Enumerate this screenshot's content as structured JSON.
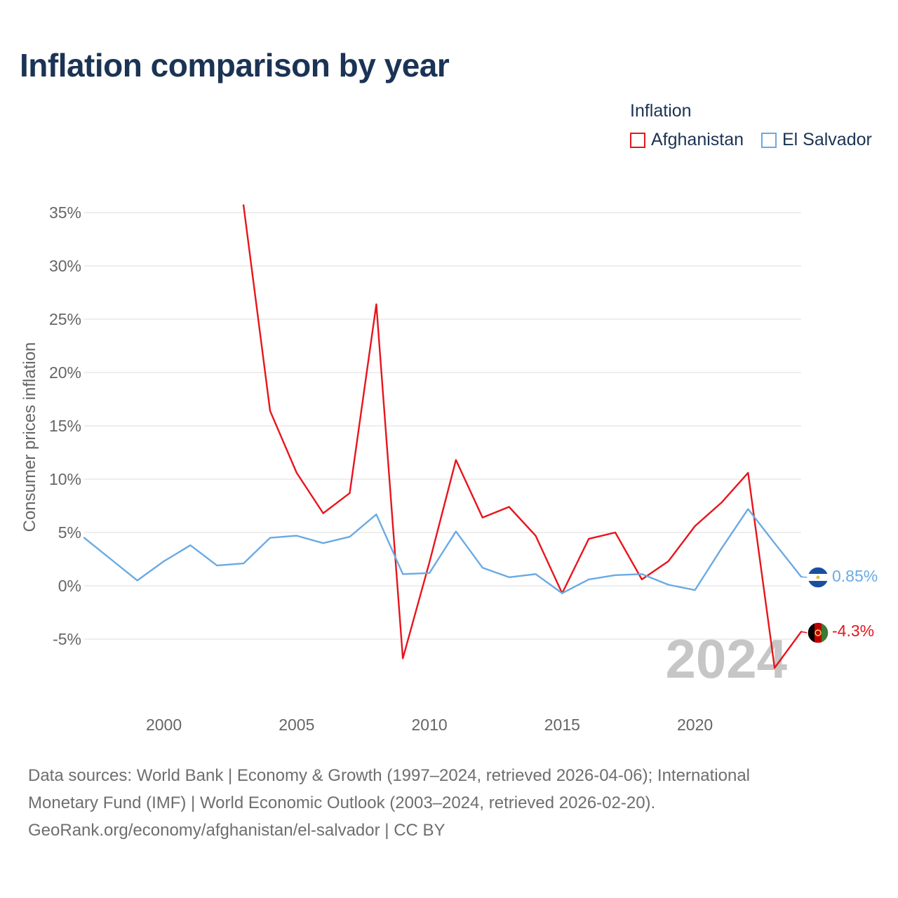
{
  "title": "Inflation comparison by year",
  "legend": {
    "title": "Inflation",
    "items": [
      {
        "label": "Afghanistan",
        "color": "#e8141c"
      },
      {
        "label": "El Salvador",
        "color": "#6aaae4"
      }
    ]
  },
  "year_watermark": "2024",
  "sources": {
    "line1": "Data sources: World Bank | Economy & Growth (1997–2024, retrieved 2026-04-06); International",
    "line2": "Monetary Fund (IMF) | World Economic Outlook (2003–2024, retrieved 2026-02-20).",
    "line3": "GeoRank.org/economy/afghanistan/el-salvador | CC BY"
  },
  "chart_data": {
    "type": "line",
    "title": "Inflation comparison by year",
    "xlabel": "",
    "ylabel": "Consumer prices inflation",
    "xlim": [
      1997,
      2024
    ],
    "ylim": [
      -10,
      35
    ],
    "grid": true,
    "legend_position": "top-right",
    "x_ticks": [
      2000,
      2005,
      2010,
      2015,
      2020
    ],
    "y_ticks": [
      35,
      30,
      25,
      20,
      15,
      10,
      5,
      0,
      -5
    ],
    "y_tick_labels": [
      "35%",
      "30%",
      "25%",
      "20%",
      "15%",
      "10%",
      "5%",
      "0%",
      "-5%"
    ],
    "series": [
      {
        "name": "Afghanistan",
        "color": "#e8141c",
        "x": [
          2003,
          2004,
          2005,
          2006,
          2007,
          2008,
          2009,
          2010,
          2011,
          2012,
          2013,
          2014,
          2015,
          2016,
          2017,
          2018,
          2019,
          2020,
          2021,
          2022,
          2023,
          2024
        ],
        "values": [
          35.7,
          16.4,
          10.6,
          6.8,
          8.7,
          26.4,
          -6.8,
          2.2,
          11.8,
          6.4,
          7.4,
          4.7,
          -0.7,
          4.4,
          5.0,
          0.6,
          2.3,
          5.6,
          7.8,
          10.6,
          -7.7,
          -4.3
        ],
        "end_label": "-4.3%"
      },
      {
        "name": "El Salvador",
        "color": "#6aaae4",
        "x": [
          1997,
          1998,
          1999,
          2000,
          2001,
          2002,
          2003,
          2004,
          2005,
          2006,
          2007,
          2008,
          2009,
          2010,
          2011,
          2012,
          2013,
          2014,
          2015,
          2016,
          2017,
          2018,
          2019,
          2020,
          2021,
          2022,
          2023,
          2024
        ],
        "values": [
          4.5,
          2.5,
          0.5,
          2.3,
          3.8,
          1.9,
          2.1,
          4.5,
          4.7,
          4.0,
          4.6,
          6.7,
          1.1,
          1.2,
          5.1,
          1.7,
          0.8,
          1.1,
          -0.7,
          0.6,
          1.0,
          1.1,
          0.1,
          -0.4,
          3.5,
          7.2,
          4.0,
          0.85
        ],
        "end_label": "0.85%"
      }
    ]
  }
}
